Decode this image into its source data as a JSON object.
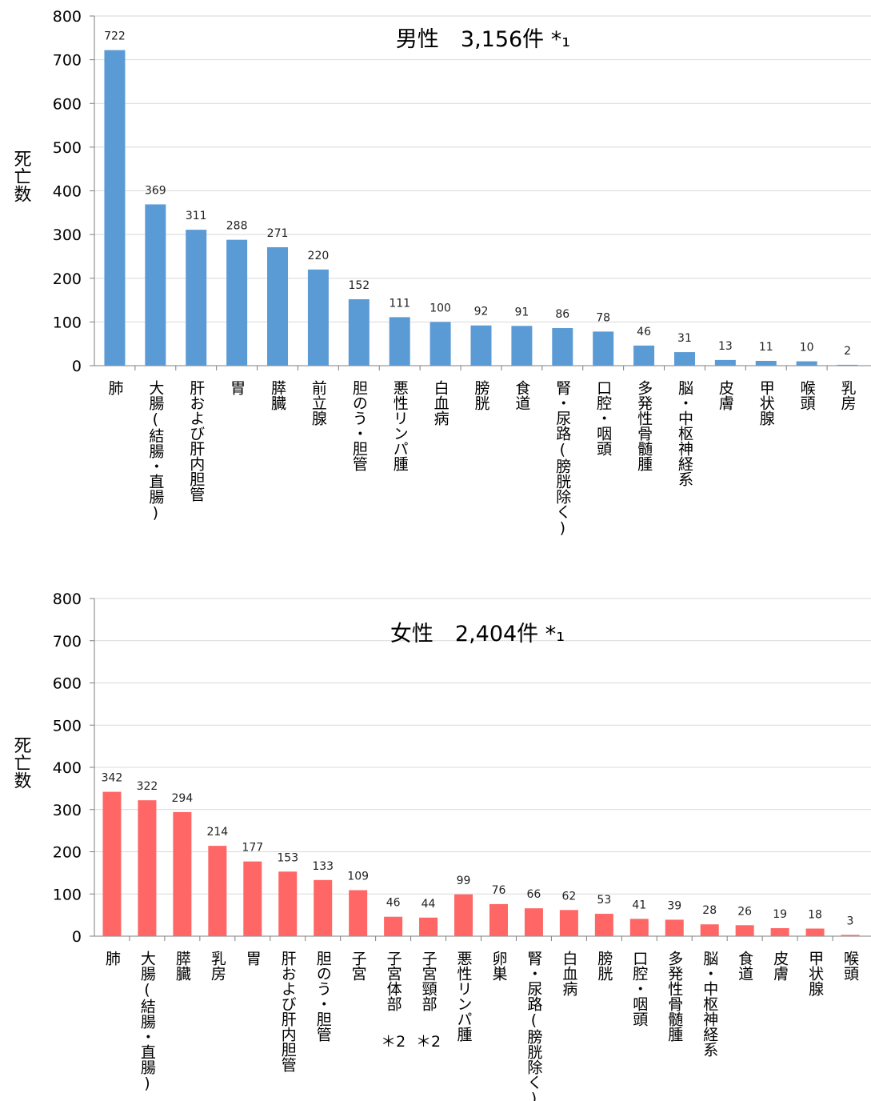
{
  "chart_data": [
    {
      "type": "bar",
      "title": "男性　3,156件 *₁",
      "ylabel": "死亡数",
      "xlabel": "",
      "ylim": [
        0,
        800
      ],
      "yticks": [
        0,
        100,
        200,
        300,
        400,
        500,
        600,
        700,
        800
      ],
      "grid": true,
      "color": "#5B9BD5",
      "categories": [
        "肺",
        "大腸(結腸・直腸)",
        "肝および肝内胆管",
        "胃",
        "膵臓",
        "前立腺",
        "胆のう・胆管",
        "悪性リンパ腫",
        "白血病",
        "膀胱",
        "食道",
        "腎・尿路(膀胱除く)",
        "口腔・咽頭",
        "多発性骨髄腫",
        "脳・中枢神経系",
        "皮膚",
        "甲状腺",
        "喉頭",
        "乳房"
      ],
      "values": [
        722,
        369,
        311,
        288,
        271,
        220,
        152,
        111,
        100,
        92,
        91,
        86,
        78,
        46,
        31,
        13,
        11,
        10,
        2
      ]
    },
    {
      "type": "bar",
      "title": "女性　2,404件 *₁",
      "ylabel": "死亡数",
      "xlabel": "",
      "ylim": [
        0,
        800
      ],
      "yticks": [
        0,
        100,
        200,
        300,
        400,
        500,
        600,
        700,
        800
      ],
      "grid": true,
      "color": "#FF6666",
      "categories": [
        "肺",
        "大腸(結腸・直腸)",
        "膵臓",
        "乳房",
        "胃",
        "肝および肝内胆管",
        "胆のう・胆管",
        "子宮",
        "子宮体部",
        "子宮頸部",
        "悪性リンパ腫",
        "卵巣",
        "腎・尿路(膀胱除く)",
        "白血病",
        "膀胱",
        "口腔・咽頭",
        "多発性骨髄腫",
        "脳・中枢神経系",
        "食道",
        "皮膚",
        "甲状腺",
        "喉頭"
      ],
      "values": [
        342,
        322,
        294,
        214,
        177,
        153,
        133,
        109,
        46,
        44,
        99,
        76,
        66,
        62,
        53,
        41,
        39,
        28,
        26,
        19,
        18,
        3
      ],
      "footnotes": [
        "＊2",
        "＊2"
      ]
    }
  ]
}
